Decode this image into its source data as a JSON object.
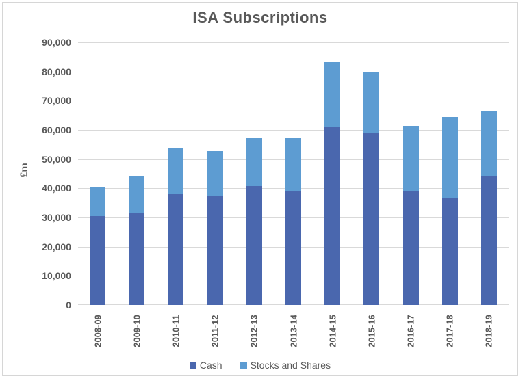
{
  "chart_data": {
    "type": "bar",
    "stacked": true,
    "title": "ISA Subscriptions",
    "xlabel": "",
    "ylabel": "£m",
    "categories": [
      "2008-09",
      "2009-10",
      "2010-11",
      "2011-12",
      "2012-13",
      "2013-14",
      "2014-15",
      "2015-16",
      "2016-17",
      "2017-18",
      "2018-19"
    ],
    "series": [
      {
        "name": "Cash",
        "color": "#4a67ae",
        "values": [
          30400,
          31700,
          38200,
          37200,
          40900,
          38800,
          60900,
          58800,
          39200,
          36700,
          44000
        ]
      },
      {
        "name": "Stocks and Shares",
        "color": "#5d9cd2",
        "values": [
          9900,
          12300,
          15500,
          15600,
          16400,
          18400,
          22300,
          21100,
          22300,
          27800,
          22500
        ]
      }
    ],
    "ylim": [
      0,
      90000
    ],
    "ytick_step": 10000,
    "ytick_labels": [
      "0",
      "10,000",
      "20,000",
      "30,000",
      "40,000",
      "50,000",
      "60,000",
      "70,000",
      "80,000",
      "90,000"
    ],
    "grid": true,
    "legend_position": "bottom",
    "grid_color": "#d9d9d9",
    "text_color": "#595959"
  }
}
